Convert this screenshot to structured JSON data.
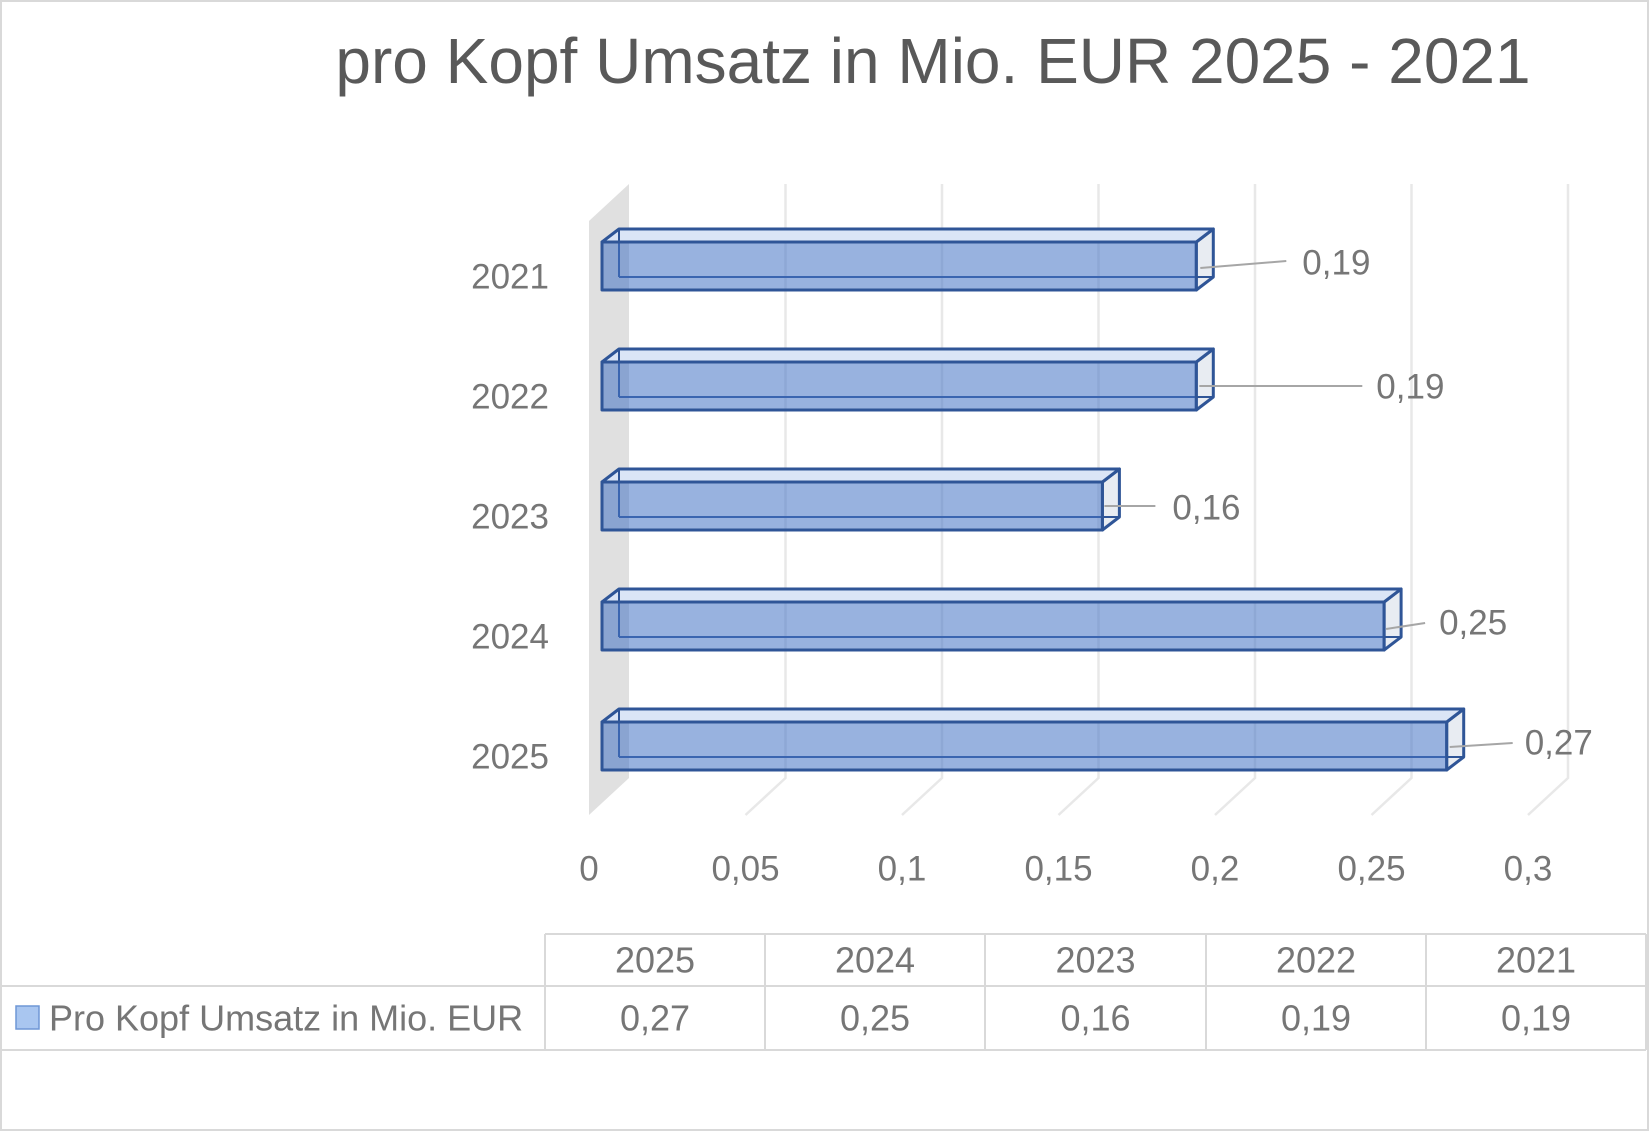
{
  "chart_data": {
    "type": "bar",
    "orientation": "horizontal",
    "style": "3d-clustered",
    "title": "pro Kopf Umsatz in Mio. EUR 2025 - 2021",
    "categories": [
      "2025",
      "2024",
      "2023",
      "2022",
      "2021"
    ],
    "series": [
      {
        "name": "Pro Kopf Umsatz in Mio. EUR",
        "values": [
          0.27,
          0.25,
          0.16,
          0.19,
          0.19
        ]
      }
    ],
    "data_labels": [
      "0,27",
      "0,25",
      "0,16",
      "0,19",
      "0,19"
    ],
    "xlim": [
      0,
      0.3
    ],
    "xtick_values": [
      0,
      0.05,
      0.1,
      0.15,
      0.2,
      0.25,
      0.3
    ],
    "xtick_labels": [
      "0",
      "0,05",
      "0,1",
      "0,15",
      "0,2",
      "0,25",
      "0,3"
    ],
    "xlabel": "",
    "ylabel": "",
    "grid": true,
    "legend": "bottom",
    "data_table": true,
    "colors": {
      "bar_fill": "#4472c4",
      "bar_edge": "#2f5597",
      "bar_top": "#dbe5f6",
      "bar_side": "#e8ecf2",
      "text": "#767676",
      "title": "#595959",
      "grid": "#e8e8e8",
      "wall": "#e0e0e0",
      "leader": "#a6a6a6",
      "table_line": "#d9d9d9",
      "legend_key": "#a9c6f0",
      "legend_key_edge": "#6f97d6",
      "border": "#d9d9d9"
    }
  }
}
